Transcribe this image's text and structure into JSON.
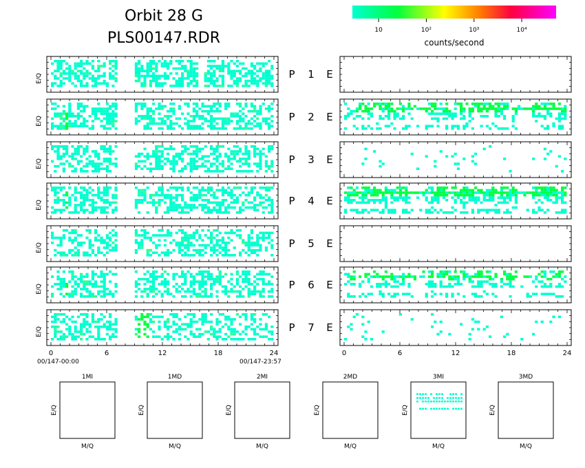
{
  "header": {
    "title_line1": "Orbit 28 G",
    "title_line2": "PLS00147.RDR"
  },
  "colorbar": {
    "colors": [
      "#00ffd0",
      "#00ff40",
      "#ffff00",
      "#ff8000",
      "#ff0040",
      "#ff00ff"
    ],
    "tick_labels": [
      "10",
      "10²",
      "10³",
      "10⁴"
    ],
    "tick_values": [
      10,
      100,
      1000,
      10000
    ],
    "unit_label": "counts/second",
    "scale": "log"
  },
  "chart_data": [
    {
      "type": "heatmap",
      "description_panels": "left column E/Q vs time, 7 rows",
      "ylabel": "E/Q",
      "x_ticks": [
        "0",
        "6",
        "12",
        "18",
        "24"
      ],
      "xlim": [
        0,
        24
      ],
      "x_start_label": "00/147-00:00",
      "x_end_label": "00/147-23:57",
      "rows": [
        {
          "label": "P",
          "index": "1",
          "coverage": [
            [
              0,
              7
            ],
            [
              8.8,
              15.7
            ],
            [
              16.3,
              24
            ]
          ],
          "density": 0.55,
          "hot": []
        },
        {
          "label": "P",
          "index": "2",
          "coverage": [
            [
              0,
              7
            ],
            [
              8.8,
              24
            ]
          ],
          "density": 0.5,
          "hot": [
            [
              1.3,
              1.8
            ]
          ]
        },
        {
          "label": "P",
          "index": "3",
          "coverage": [
            [
              0,
              7
            ],
            [
              8.8,
              24
            ]
          ],
          "density": 0.5,
          "hot": [
            [
              16,
              16.2
            ]
          ]
        },
        {
          "label": "P",
          "index": "4",
          "coverage": [
            [
              0,
              7
            ],
            [
              8.8,
              24
            ]
          ],
          "density": 0.5,
          "hot": [
            [
              1.3,
              1.8
            ]
          ]
        },
        {
          "label": "P",
          "index": "5",
          "coverage": [
            [
              0,
              7
            ],
            [
              8.8,
              24
            ]
          ],
          "density": 0.45,
          "hot": []
        },
        {
          "label": "P",
          "index": "6",
          "coverage": [
            [
              0,
              7
            ],
            [
              8.8,
              24
            ]
          ],
          "density": 0.45,
          "hot": [
            [
              1.3,
              1.8
            ]
          ]
        },
        {
          "label": "P",
          "index": "7",
          "coverage": [
            [
              0,
              7
            ],
            [
              8.8,
              24
            ]
          ],
          "density": 0.45,
          "hot": [
            [
              9.3,
              10.5
            ]
          ]
        }
      ]
    },
    {
      "type": "heatmap",
      "description_panels": "right column E/Q vs time, 7 rows",
      "ylabel": "E",
      "x_ticks": [
        "0",
        "6",
        "12",
        "18",
        "24"
      ],
      "xlim": [
        0,
        24
      ],
      "rows": [
        {
          "label": "E",
          "index": "1",
          "density": 0.0,
          "band": null
        },
        {
          "label": "E",
          "index": "2",
          "density": 0.45,
          "band": [
            0.55,
            0.75
          ]
        },
        {
          "label": "E",
          "index": "3",
          "density": 0.04,
          "band": null
        },
        {
          "label": "E",
          "index": "4",
          "density": 0.55,
          "band": [
            0.6,
            0.8
          ]
        },
        {
          "label": "E",
          "index": "5",
          "density": 0.0,
          "band": null
        },
        {
          "label": "E",
          "index": "6",
          "density": 0.4,
          "band": [
            0.55,
            0.75
          ]
        },
        {
          "label": "E",
          "index": "7",
          "density": 0.05,
          "band": null
        }
      ]
    },
    {
      "type": "scatter",
      "description_panels": "bottom row mass spectra",
      "xlabel": "M/Q",
      "ylabel": "E/Q",
      "panels": [
        {
          "title": "1MI",
          "lines": []
        },
        {
          "title": "1MD",
          "lines": []
        },
        {
          "title": "2MI",
          "lines": []
        },
        {
          "title": "2MD",
          "lines": []
        },
        {
          "title": "3MI",
          "lines": [
            0.2,
            0.27,
            0.33,
            0.46
          ]
        },
        {
          "title": "3MD",
          "lines": []
        }
      ]
    }
  ]
}
